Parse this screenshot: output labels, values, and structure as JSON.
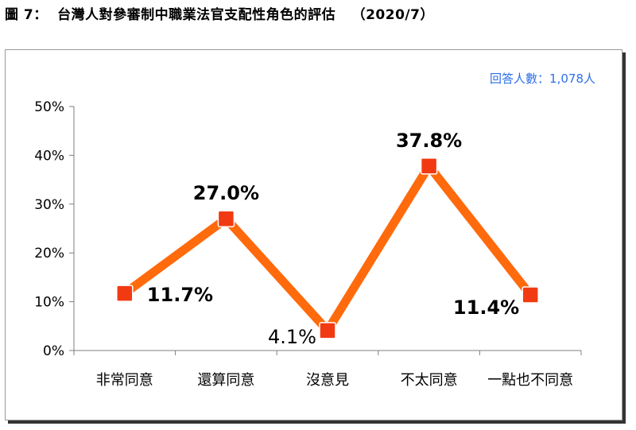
{
  "header": {
    "figure_label": "圖 7：",
    "title": "台灣人對參審制中職業法官支配性角色的評估",
    "date": "（2020/7）"
  },
  "respondents_note": "回答人數：1,078人",
  "colors": {
    "line": "#ff6a0c",
    "marker": "#f23a12",
    "note": "#2e6fe8"
  },
  "chart_data": {
    "type": "line",
    "title": "台灣人對參審制中職業法官支配性角色的評估",
    "xlabel": "",
    "ylabel": "",
    "categories": [
      "非常同意",
      "還算同意",
      "沒意見",
      "不太同意",
      "一點也不同意"
    ],
    "series": [
      {
        "values": [
          11.7,
          27.0,
          4.1,
          37.8,
          11.4
        ]
      }
    ],
    "data_labels": [
      "11.7%",
      "27.0%",
      "4.1%",
      "37.8%",
      "11.4%"
    ],
    "y_ticks": [
      "0%",
      "10%",
      "20%",
      "30%",
      "40%",
      "50%"
    ],
    "ylim": [
      0,
      50
    ],
    "grid": false,
    "legend": "none"
  }
}
